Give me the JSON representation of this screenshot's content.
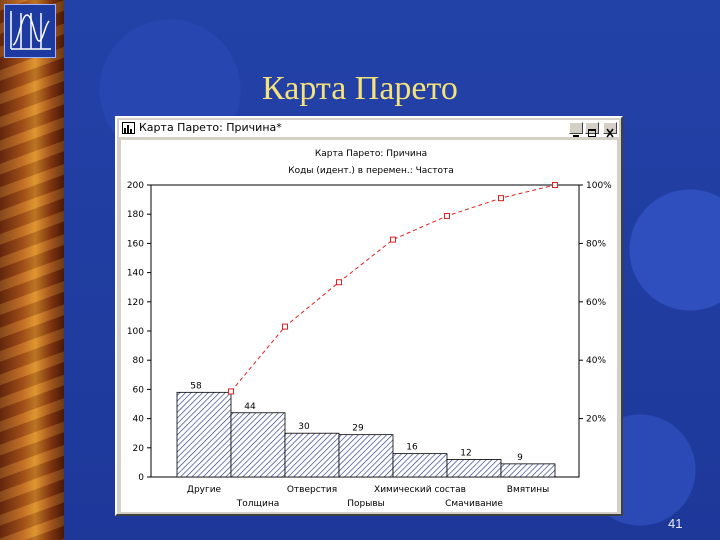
{
  "slide": {
    "title": "Карта Парето",
    "page_number": "41"
  },
  "window": {
    "title": "Карта Парето: Причина*",
    "buttons": [
      "minimize",
      "maximize",
      "close"
    ]
  },
  "chart_data": {
    "type": "bar",
    "title": "Карта Парето: Причина",
    "subtitle": "Коды (идент.) в перемен.: Частота",
    "categories": [
      "Другие",
      "Толщина",
      "Отверстия",
      "Порывы",
      "Химический состав",
      "Смачивание",
      "Вмятины"
    ],
    "values": [
      58,
      44,
      30,
      29,
      16,
      12,
      9
    ],
    "value_labels": [
      "58",
      "44",
      "30",
      "29",
      "16",
      "12",
      "9"
    ],
    "cumulative_percent": [
      29.3,
      51.5,
      66.7,
      81.3,
      89.4,
      95.5,
      100
    ],
    "ylim": [
      0,
      200
    ],
    "yticks": [
      "0",
      "20",
      "40",
      "60",
      "80",
      "100",
      "120",
      "140",
      "160",
      "180",
      "200"
    ],
    "y2ticks": [
      "20%",
      "40%",
      "60%",
      "80%",
      "100%"
    ],
    "y2tick_values": [
      20,
      40,
      60,
      80,
      100
    ],
    "grid": false,
    "bar_fill": "diagonal hatch",
    "line_color": "#e02020",
    "bar_color": "#1a2a80"
  }
}
